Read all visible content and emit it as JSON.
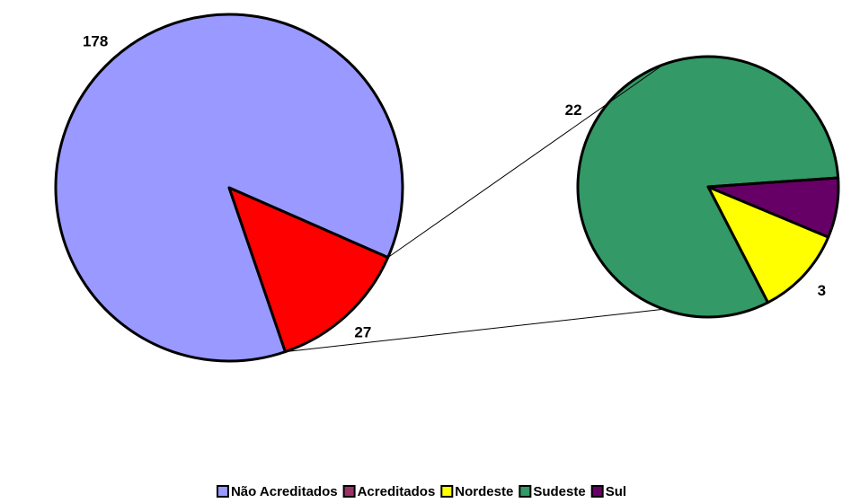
{
  "chart_data": {
    "type": "pie-of-pie",
    "categories": [
      "Não Acreditados",
      "Acreditados"
    ],
    "values": [
      178,
      27
    ],
    "colors": [
      "#9999ff",
      "#ff0000"
    ],
    "legend_colors": [
      "#9999ff",
      "#993366"
    ],
    "secondary": {
      "categories": [
        "Nordeste",
        "Sudeste",
        "Sul"
      ],
      "values": [
        3,
        22,
        2
      ],
      "colors": [
        "#ffff00",
        "#339966",
        "#660066"
      ]
    },
    "legend": "bottom"
  }
}
